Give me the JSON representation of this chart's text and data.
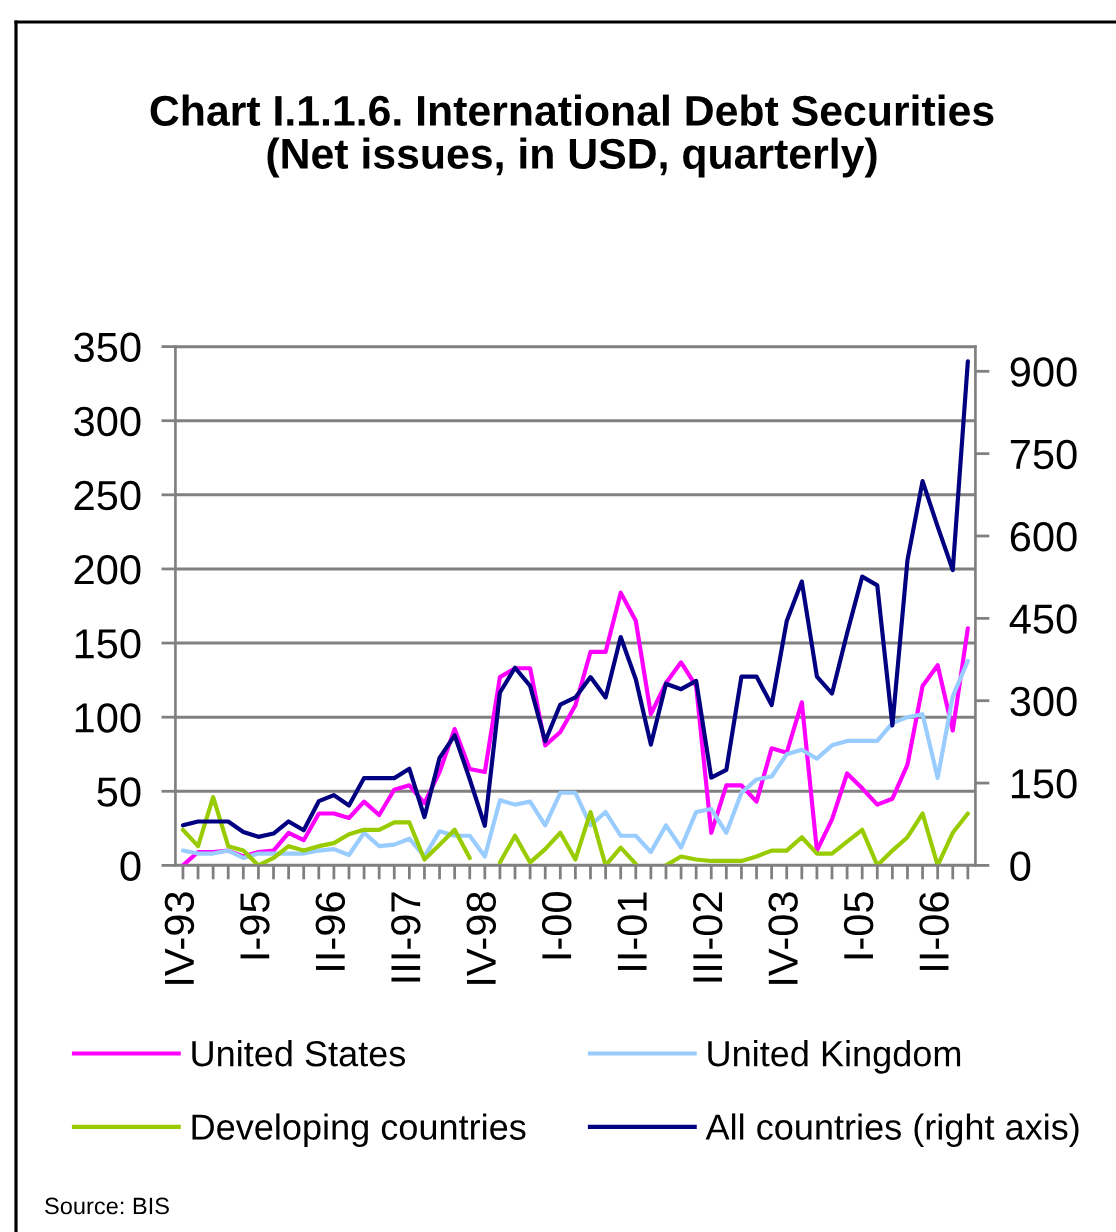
{
  "chart_data": {
    "type": "line",
    "title": "Chart I.1.1.6. International Debt Securities\n(Net issues, in USD, quarterly)",
    "categories": [
      "IV-93",
      null,
      null,
      null,
      null,
      "I-95",
      null,
      null,
      null,
      null,
      "II-96",
      null,
      null,
      null,
      null,
      "III-97",
      null,
      null,
      null,
      null,
      "IV-98",
      null,
      null,
      null,
      null,
      "I-00",
      null,
      null,
      null,
      null,
      "II-01",
      null,
      null,
      null,
      null,
      "III-02",
      null,
      null,
      null,
      null,
      "IV-03",
      null,
      null,
      null,
      null,
      "I-05",
      null,
      null,
      null,
      null,
      "II-06",
      null,
      null
    ],
    "series": [
      {
        "name": "United States",
        "color": "#ff00ff",
        "values": [
          0,
          9,
          9,
          10,
          6,
          9,
          10,
          22,
          17,
          35,
          35,
          32,
          43,
          34,
          51,
          54,
          42,
          63,
          92,
          65,
          63,
          127,
          133,
          133,
          81,
          90,
          108,
          144,
          144,
          184,
          165,
          102,
          123,
          137,
          121,
          22,
          54,
          54,
          43,
          79,
          76,
          110,
          10,
          31,
          62,
          52,
          41,
          45,
          68,
          121,
          135,
          91,
          160
        ]
      },
      {
        "name": "United Kingdom",
        "color": "#99ccff",
        "values": [
          10,
          8,
          8,
          10,
          5,
          8,
          8,
          8,
          8,
          10,
          11,
          7,
          22,
          13,
          14,
          18,
          6,
          23,
          20,
          20,
          6,
          44,
          41,
          43,
          27,
          49,
          49,
          27,
          36,
          20,
          20,
          9,
          27,
          12,
          36,
          38,
          22,
          49,
          58,
          60,
          75,
          78,
          72,
          81,
          84,
          84,
          84,
          96,
          100,
          102,
          59,
          114,
          138
        ]
      },
      {
        "name": "Developing countries",
        "color": "#99cc00",
        "values": [
          24,
          13,
          46,
          13,
          10,
          0,
          5,
          13,
          10,
          13,
          15,
          21,
          24,
          24,
          29,
          29,
          4,
          14,
          24,
          5,
          null,
          2,
          20,
          2,
          11,
          22,
          4,
          36,
          0,
          12,
          1,
          null,
          0,
          6,
          4,
          3,
          3,
          3,
          6,
          10,
          10,
          19,
          8,
          8,
          16,
          24,
          0,
          10,
          19,
          35,
          0,
          22,
          35
        ]
      },
      {
        "name": "All countries (right axis)",
        "color": "#000080",
        "axis": "y2",
        "values": [
          73,
          80,
          80,
          80,
          61,
          52,
          58,
          80,
          64,
          117,
          128,
          109,
          159,
          159,
          159,
          176,
          88,
          196,
          237,
          157,
          72,
          315,
          360,
          327,
          226,
          293,
          306,
          343,
          306,
          416,
          339,
          220,
          331,
          321,
          336,
          160,
          174,
          344,
          344,
          292,
          445,
          517,
          344,
          313,
          423,
          526,
          510,
          255,
          556,
          700,
          617,
          538,
          918
        ]
      }
    ],
    "ylim": [
      0,
      350
    ],
    "yticks": [
      0,
      50,
      100,
      150,
      200,
      250,
      300,
      350
    ],
    "y2lim": [
      0,
      945
    ],
    "y2ticks": [
      0,
      150,
      300,
      450,
      600,
      750,
      900
    ],
    "grid": "y",
    "legend": "bottom",
    "annotations": [
      "Source: BIS"
    ]
  }
}
